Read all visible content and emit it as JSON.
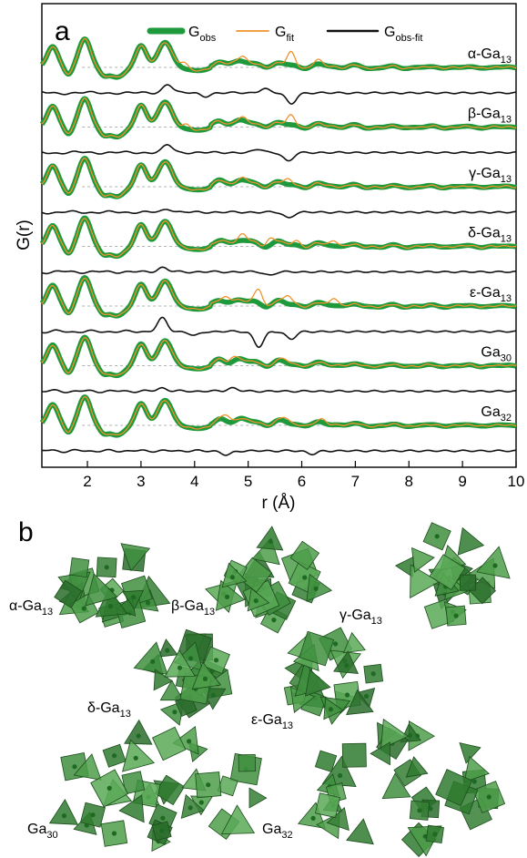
{
  "panel_a": {
    "letter": "a",
    "legend": [
      {
        "name": "G",
        "sub": "obs",
        "color": "#1e9a3c"
      },
      {
        "name": "G",
        "sub": "fit",
        "color": "#f0922b"
      },
      {
        "name": "G",
        "sub": "obs-fit",
        "color": "#111111"
      }
    ]
  },
  "panel_b": {
    "letter": "b",
    "clusters": [
      {
        "prefix": "α-Ga",
        "sub": "13"
      },
      {
        "prefix": "β-Ga",
        "sub": "13"
      },
      {
        "prefix": "γ-Ga",
        "sub": "13"
      },
      {
        "prefix": "δ-Ga",
        "sub": "13"
      },
      {
        "prefix": "ε-Ga",
        "sub": "13"
      },
      {
        "prefix": "Ga",
        "sub": "30"
      },
      {
        "prefix": "Ga",
        "sub": "32"
      }
    ],
    "polyhedra_color": "#3f8a3f"
  },
  "chart_data": {
    "type": "line",
    "xlabel": "r (Å)",
    "ylabel": "G(r)",
    "xlim": [
      1.15,
      10
    ],
    "xticks": [
      2,
      3,
      4,
      5,
      6,
      7,
      8,
      9,
      10
    ],
    "ytick_labels": "none",
    "baseline_style": "dashed grey reference line per curve",
    "series": [
      {
        "name": "α-Ga13",
        "prefix": "α-Ga",
        "sub": "13",
        "fit_dev": [
          [
            3.8,
            0.6
          ],
          [
            4.9,
            0.5
          ],
          [
            5.8,
            1.2
          ],
          [
            6.3,
            0.4
          ]
        ],
        "diff_dev": [
          [
            3.5,
            0.8
          ],
          [
            4.2,
            -0.3
          ],
          [
            5.8,
            -1.0
          ],
          [
            5.3,
            0.4
          ]
        ]
      },
      {
        "name": "β-Ga13",
        "prefix": "β-Ga",
        "sub": "13",
        "fit_dev": [
          [
            3.85,
            0.4
          ],
          [
            5.8,
            0.9
          ],
          [
            4.9,
            0.3
          ]
        ],
        "diff_dev": [
          [
            3.5,
            0.7
          ],
          [
            5.75,
            -0.8
          ],
          [
            5.2,
            0.3
          ]
        ]
      },
      {
        "name": "γ-Ga13",
        "prefix": "γ-Ga",
        "sub": "13",
        "fit_dev": [
          [
            5.75,
            0.5
          ],
          [
            4.9,
            0.2
          ]
        ],
        "diff_dev": [
          [
            5.75,
            -0.5
          ],
          [
            3.5,
            0.3
          ]
        ]
      },
      {
        "name": "δ-Ga13",
        "prefix": "δ-Ga",
        "sub": "13",
        "fit_dev": [
          [
            4.9,
            0.6
          ],
          [
            5.4,
            0.6
          ],
          [
            6.6,
            0.5
          ],
          [
            5.9,
            0.4
          ]
        ],
        "diff_dev": [
          [
            3.4,
            0.4
          ],
          [
            5.4,
            -0.3
          ]
        ]
      },
      {
        "name": "ε-Ga13",
        "prefix": "ε-Ga",
        "sub": "13",
        "fit_dev": [
          [
            5.2,
            1.3
          ],
          [
            5.75,
            0.8
          ],
          [
            6.6,
            0.7
          ],
          [
            4.6,
            0.5
          ]
        ],
        "diff_dev": [
          [
            3.4,
            1.2
          ],
          [
            5.2,
            -1.4
          ],
          [
            5.8,
            -0.7
          ],
          [
            4.0,
            -0.4
          ]
        ]
      },
      {
        "name": "Ga30",
        "prefix": "Ga",
        "sub": "30",
        "fit_dev": [
          [
            4.7,
            0.4
          ],
          [
            5.7,
            0.3
          ]
        ],
        "diff_dev": [
          [
            4.7,
            0.3
          ],
          [
            3.4,
            0.3
          ]
        ]
      },
      {
        "name": "Ga32",
        "prefix": "Ga",
        "sub": "32",
        "fit_dev": [
          [
            4.6,
            0.6
          ],
          [
            5.7,
            0.4
          ],
          [
            6.4,
            0.3
          ]
        ],
        "diff_dev": [
          [
            4.6,
            -0.4
          ],
          [
            6.2,
            -0.3
          ]
        ]
      }
    ]
  }
}
